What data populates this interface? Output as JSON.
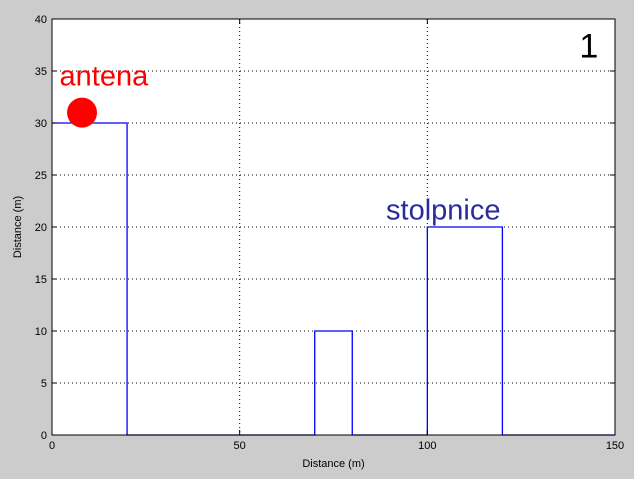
{
  "chart_data": {
    "type": "line",
    "title": "",
    "xlabel": "Distance (m)",
    "ylabel": "Distance (m)",
    "xlim": [
      0,
      150
    ],
    "ylim": [
      0,
      40
    ],
    "xticks": [
      0,
      50,
      100,
      150
    ],
    "yticks": [
      0,
      5,
      10,
      15,
      20,
      25,
      30,
      35,
      40
    ],
    "grid": true,
    "series": [
      {
        "x": [
          0,
          20,
          20,
          70,
          70,
          80,
          80,
          100,
          100,
          120,
          120,
          150
        ],
        "y": [
          30,
          30,
          0,
          0,
          10,
          10,
          0,
          0,
          20,
          20,
          0,
          0
        ]
      }
    ],
    "markers": [
      {
        "x": 8,
        "y": 31
      }
    ],
    "annotations": [
      {
        "text": "antena",
        "x": 2,
        "y": 33.6,
        "color": "#ff0000"
      },
      {
        "text": "stolpnice",
        "x": 89,
        "y": 20.7,
        "color": "#2b2b9e"
      },
      {
        "text": "1",
        "x": 140.5,
        "y": 36.3,
        "color": "#000000"
      }
    ],
    "colors": {
      "line": "#0000ff",
      "marker": "#ff0000",
      "background": "#cccccc",
      "axes_background": "#ffffff",
      "axes": "#000000",
      "grid": "#000000"
    }
  }
}
